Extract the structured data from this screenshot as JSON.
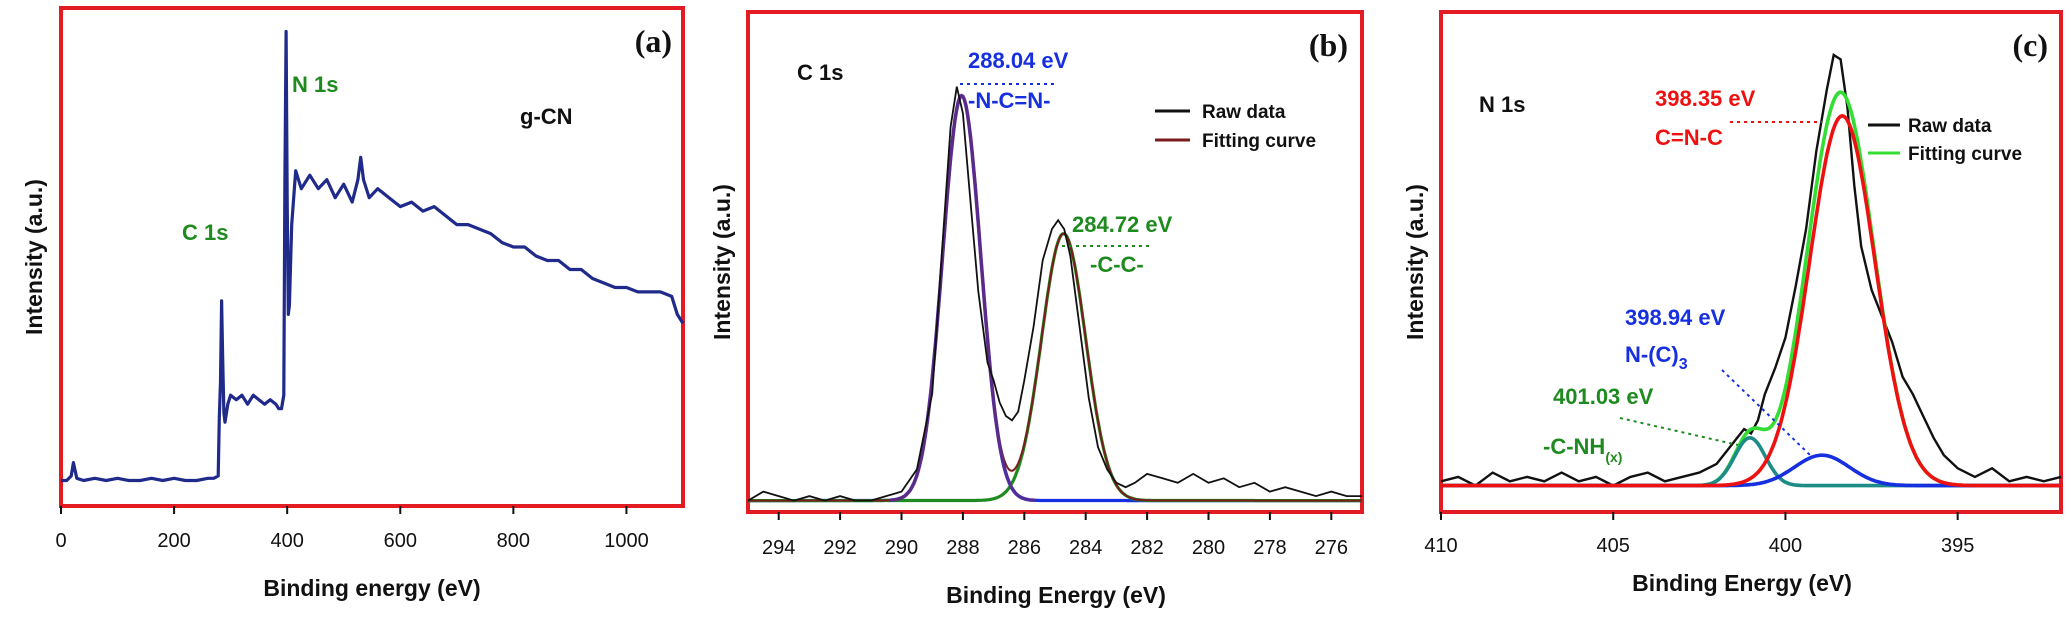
{
  "colors": {
    "frame": "#e31b23",
    "survey_line": "#1f2a8a",
    "raw": "#111111",
    "fit_b": "#7a1c1c",
    "fit_c": "#33dd33",
    "comp_blue": "#1630e0",
    "comp_green": "#1f8a1f",
    "comp_purple": "#5a2d91",
    "comp_red": "#ee1111",
    "comp_teal": "#1d8c86",
    "ann_green": "#1f8a1f",
    "ann_blue": "#1630e0",
    "ann_red": "#ee1111"
  },
  "chart_data": [
    {
      "id": "a",
      "type": "line",
      "panel_label": "(a)",
      "title": "g-CN",
      "xlabel": "Binding energy (eV)",
      "ylabel": "Intensity (a.u.)",
      "xlim": [
        0,
        1100
      ],
      "ylim": [
        0,
        100
      ],
      "x_reversed": false,
      "xticks": [
        0,
        200,
        400,
        600,
        800,
        1000
      ],
      "yticks_visible": false,
      "series": [
        {
          "name": "survey",
          "color_key": "survey_line",
          "x": [
            0,
            10,
            18,
            22,
            28,
            40,
            60,
            80,
            100,
            120,
            140,
            160,
            180,
            200,
            220,
            240,
            260,
            270,
            278,
            280,
            282,
            284,
            286,
            288,
            290,
            295,
            300,
            310,
            320,
            330,
            340,
            350,
            360,
            370,
            380,
            385,
            390,
            394,
            396,
            398,
            400,
            402,
            404,
            408,
            415,
            425,
            440,
            455,
            470,
            485,
            500,
            515,
            525,
            530,
            535,
            545,
            560,
            580,
            600,
            620,
            640,
            660,
            680,
            700,
            720,
            740,
            760,
            780,
            800,
            820,
            840,
            860,
            880,
            900,
            920,
            940,
            960,
            980,
            1000,
            1020,
            1040,
            1060,
            1080,
            1090,
            1100
          ],
          "y": [
            3,
            3,
            4,
            7,
            3.5,
            3,
            3.5,
            3,
            3.5,
            3,
            3,
            3.5,
            3,
            3.5,
            3,
            3,
            3.5,
            3.5,
            4,
            17,
            25,
            43,
            30,
            18,
            16,
            20,
            22,
            21,
            22,
            20,
            22,
            21,
            20,
            21,
            20,
            19,
            19,
            22,
            70,
            103,
            65,
            40,
            42,
            60,
            72,
            68,
            71,
            68,
            70,
            66,
            69,
            65,
            70,
            75,
            70,
            66,
            68,
            66,
            64,
            65,
            63,
            64,
            62,
            60,
            60,
            59,
            58,
            56,
            55,
            55,
            53,
            52,
            52,
            50,
            50,
            48,
            47,
            46,
            46,
            45,
            45,
            45,
            44,
            40,
            38
          ]
        }
      ],
      "annotations": [
        {
          "text": "N 1s",
          "color_key": "ann_green",
          "anchor_x": 430,
          "anchor_y": 95
        },
        {
          "text": "C 1s",
          "color_key": "ann_green",
          "anchor_x": 235,
          "anchor_y": 59
        },
        {
          "text": "g-CN",
          "color_key": "raw",
          "anchor_x": 720,
          "anchor_y": 87
        }
      ]
    },
    {
      "id": "b",
      "type": "line",
      "panel_label": "(b)",
      "title": "C 1s",
      "xlabel": "Binding Energy (eV)",
      "ylabel": "Intensity (a.u.)",
      "xlim": [
        295,
        275
      ],
      "ylim": [
        0,
        100
      ],
      "x_reversed": true,
      "xticks": [
        294,
        292,
        290,
        288,
        286,
        284,
        282,
        280,
        278,
        276
      ],
      "yticks_visible": false,
      "legend": {
        "position": "top-right",
        "entries": [
          {
            "label": "Raw data",
            "color_key": "raw"
          },
          {
            "label": "Fitting curve",
            "color_key": "fit_b"
          }
        ]
      },
      "components": [
        {
          "name": "C=N peak",
          "center": 288.04,
          "amplitude": 91,
          "sigma": 0.62,
          "color_key": "comp_blue"
        },
        {
          "name": "C-C peak",
          "center": 284.72,
          "amplitude": 60,
          "sigma": 0.72,
          "color_key": "comp_green"
        }
      ],
      "envelope": {
        "name": "Fitting curve",
        "color_key": "fit_b"
      },
      "overlay": {
        "name": "sum",
        "color_key": "comp_purple"
      },
      "raw": {
        "name": "Raw data",
        "color_key": "raw",
        "x": [
          295,
          294.5,
          294,
          293.5,
          293,
          292.5,
          292,
          291.5,
          291,
          290.5,
          290,
          289.5,
          289,
          288.7,
          288.4,
          288.2,
          288.0,
          287.8,
          287.5,
          287.2,
          287.0,
          286.8,
          286.6,
          286.4,
          286.2,
          286.0,
          285.7,
          285.4,
          285.1,
          284.9,
          284.7,
          284.5,
          284.2,
          283.9,
          283.6,
          283.3,
          283.0,
          282.7,
          282.4,
          282.0,
          281.5,
          281.0,
          280.5,
          280.0,
          279.5,
          279.0,
          278.5,
          278.0,
          277.5,
          277.0,
          276.5,
          276.0,
          275.5,
          275
        ],
        "y": [
          1,
          3,
          2,
          1,
          2,
          1,
          2,
          1,
          1,
          2,
          3,
          8,
          25,
          55,
          85,
          94,
          88,
          72,
          48,
          32,
          28,
          23,
          20,
          19,
          21,
          28,
          40,
          55,
          62,
          64,
          62,
          56,
          40,
          24,
          13,
          8,
          5,
          4,
          5,
          7,
          6,
          5,
          7,
          5,
          6,
          4,
          5,
          3,
          4,
          3,
          2,
          3,
          2,
          2
        ]
      },
      "annotations": [
        {
          "text": "288.04 eV",
          "sub": "-N-C=N-",
          "color_key": "ann_blue"
        },
        {
          "text": "284.72 eV",
          "sub": "-C-C-",
          "color_key": "ann_green"
        }
      ]
    },
    {
      "id": "c",
      "type": "line",
      "panel_label": "(c)",
      "title": "N 1s",
      "xlabel": "Binding Energy (eV)",
      "ylabel": "Intensity (a.u.)",
      "xlim": [
        410,
        392
      ],
      "ylim": [
        0,
        100
      ],
      "x_reversed": true,
      "xticks": [
        410,
        405,
        400,
        395
      ],
      "yticks_visible": false,
      "legend": {
        "position": "top-right",
        "entries": [
          {
            "label": "Raw data",
            "color_key": "raw"
          },
          {
            "label": "Fitting curve",
            "color_key": "fit_c"
          }
        ]
      },
      "components": [
        {
          "name": "C=N-C",
          "center": 398.35,
          "amplitude": 85,
          "sigma": 0.95,
          "color_key": "comp_red"
        },
        {
          "name": "N-(C)3",
          "center": 398.94,
          "amplitude": 7,
          "sigma": 0.8,
          "color_key": "comp_blue"
        },
        {
          "name": "-C-NH(x)",
          "center": 401.03,
          "amplitude": 11,
          "sigma": 0.45,
          "color_key": "comp_teal"
        }
      ],
      "envelope": {
        "name": "Fitting curve",
        "color_key": "fit_c"
      },
      "raw": {
        "name": "Raw data",
        "color_key": "raw",
        "x": [
          410,
          409.5,
          409,
          408.5,
          408,
          407.5,
          407,
          406.5,
          406,
          405.5,
          405,
          404.5,
          404,
          403.5,
          403,
          402.5,
          402,
          401.7,
          401.4,
          401.2,
          401.0,
          400.8,
          400.6,
          400.3,
          400.0,
          399.7,
          399.4,
          399.1,
          398.8,
          398.6,
          398.4,
          398.2,
          398.0,
          397.8,
          397.5,
          397.2,
          396.9,
          396.6,
          396.3,
          396.0,
          395.7,
          395.4,
          395.0,
          394.5,
          394.0,
          393.5,
          393.0,
          392.5,
          392
        ],
        "y": [
          2,
          3,
          1,
          4,
          2,
          3,
          2,
          4,
          2,
          3,
          1,
          3,
          4,
          2,
          3,
          4,
          6,
          9,
          12,
          14,
          13,
          16,
          22,
          28,
          35,
          47,
          60,
          78,
          92,
          100,
          99,
          88,
          70,
          56,
          46,
          40,
          34,
          26,
          22,
          17,
          12,
          8,
          5,
          3,
          5,
          2,
          3,
          2,
          3
        ]
      },
      "annotations": [
        {
          "text": "398.35 eV",
          "sub": "C=N-C",
          "color_key": "ann_red"
        },
        {
          "text": "398.94 eV",
          "sub": "N-(C)",
          "sub_index": "3",
          "color_key": "ann_blue"
        },
        {
          "text": "401.03 eV",
          "sub": "-C-NH",
          "sub_index": "(x)",
          "color_key": "ann_green"
        }
      ]
    }
  ]
}
